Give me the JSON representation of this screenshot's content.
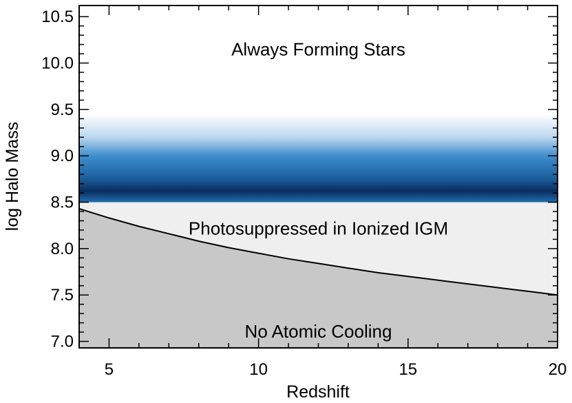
{
  "chart_data": {
    "type": "area",
    "title": "",
    "xlabel": "Redshift",
    "ylabel": "log Halo Mass",
    "xlim": [
      4,
      20
    ],
    "ylim": [
      6.93,
      10.62
    ],
    "x_ticks": [
      5,
      10,
      15,
      20
    ],
    "x_tick_labels": [
      "5",
      "10",
      "15",
      "20"
    ],
    "y_ticks": [
      7.0,
      7.5,
      8.0,
      8.5,
      9.0,
      9.5,
      10.0,
      10.5
    ],
    "y_tick_labels": [
      "7.0",
      "7.5",
      "8.0",
      "8.5",
      "9.0",
      "9.5",
      "10.0",
      "10.5"
    ],
    "grid": false,
    "legend": "none",
    "atomic_cooling_limit": {
      "x": [
        4,
        5,
        6,
        7,
        8,
        9,
        10,
        11,
        12,
        13,
        14,
        15,
        16,
        17,
        18,
        19,
        20
      ],
      "y": [
        8.43,
        8.33,
        8.24,
        8.16,
        8.08,
        8.01,
        7.95,
        7.89,
        7.84,
        7.79,
        7.74,
        7.7,
        7.66,
        7.62,
        7.58,
        7.54,
        7.5
      ]
    },
    "photosuppression_limit": 8.5,
    "probability_band": {
      "y_min": 8.5,
      "y_max": 9.45,
      "peak": 8.62,
      "colors": {
        "light": "#ffffff",
        "mid": "#3d8fcc",
        "dark": "#0a2c5e"
      }
    },
    "region_colors": {
      "no_atomic_cooling": "#c8c8c8",
      "photosuppressed": "#efefef",
      "always_forming": "#ffffff"
    },
    "annotations": [
      {
        "text": "Always Forming Stars",
        "x": 12.0,
        "y": 10.15
      },
      {
        "text": "Photosuppressed in Ionized IGM",
        "x": 12.0,
        "y": 8.22
      },
      {
        "text": "No Atomic Cooling",
        "x": 12.0,
        "y": 7.11
      }
    ]
  }
}
